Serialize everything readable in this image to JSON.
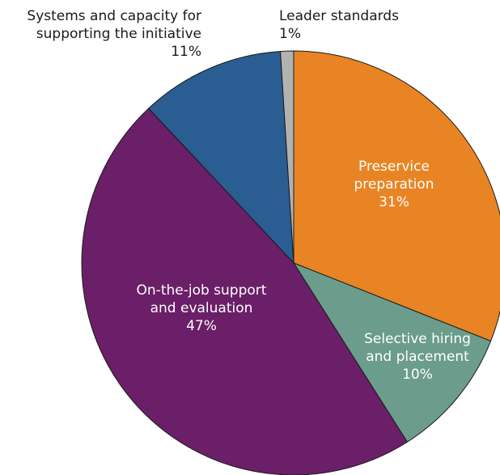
{
  "chart_data": {
    "type": "pie",
    "title": "",
    "start_angle_deg": -90,
    "direction": "clockwise",
    "slices": [
      {
        "label_lines": [
          "Preservice",
          "preparation"
        ],
        "pct_label": "31%",
        "value": 31,
        "color": "#e98424"
      },
      {
        "label_lines": [
          "Selective hiring",
          "and placement"
        ],
        "pct_label": "10%",
        "value": 10,
        "color": "#6c9c8b"
      },
      {
        "label_lines": [
          "On-the-job support",
          "and evaluation"
        ],
        "pct_label": "47%",
        "value": 47,
        "color": "#6b1f68"
      },
      {
        "label_lines": [
          "Systems and capacity for",
          "supporting the initiative"
        ],
        "pct_label": "11%",
        "value": 11,
        "color": "#2a5d91"
      },
      {
        "label_lines": [
          "Leader standards"
        ],
        "pct_label": "1%",
        "value": 1,
        "color": "#b2b2b2"
      }
    ]
  }
}
